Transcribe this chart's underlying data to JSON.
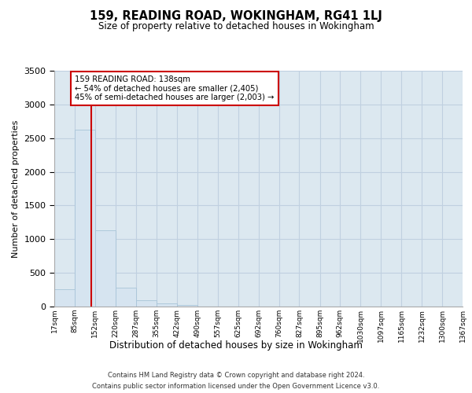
{
  "title": "159, READING ROAD, WOKINGHAM, RG41 1LJ",
  "subtitle": "Size of property relative to detached houses in Wokingham",
  "xlabel": "Distribution of detached houses by size in Wokingham",
  "ylabel": "Number of detached properties",
  "footer_line1": "Contains HM Land Registry data © Crown copyright and database right 2024.",
  "footer_line2": "Contains public sector information licensed under the Open Government Licence v3.0.",
  "annotation_line1": "159 READING ROAD: 138sqm",
  "annotation_line2": "← 54% of detached houses are smaller (2,405)",
  "annotation_line3": "45% of semi-detached houses are larger (2,003) →",
  "property_size_sqm": 138,
  "bar_color": "#d6e4f0",
  "bar_edge_color": "#a8c4d8",
  "redline_color": "#cc0000",
  "annotation_box_color": "#ffffff",
  "annotation_box_edge": "#cc0000",
  "background_color": "#ffffff",
  "grid_color": "#c0d0e0",
  "axes_bg_color": "#dce8f0",
  "bin_edges": [
    17,
    85,
    152,
    220,
    287,
    355,
    422,
    490,
    557,
    625,
    692,
    760,
    827,
    895,
    962,
    1030,
    1097,
    1165,
    1232,
    1300,
    1367
  ],
  "bin_labels": [
    "17sqm",
    "85sqm",
    "152sqm",
    "220sqm",
    "287sqm",
    "355sqm",
    "422sqm",
    "490sqm",
    "557sqm",
    "625sqm",
    "692sqm",
    "760sqm",
    "827sqm",
    "895sqm",
    "962sqm",
    "1030sqm",
    "1097sqm",
    "1165sqm",
    "1232sqm",
    "1300sqm",
    "1367sqm"
  ],
  "counts": [
    260,
    2630,
    1130,
    280,
    95,
    50,
    25,
    0,
    0,
    0,
    0,
    0,
    0,
    0,
    0,
    0,
    0,
    0,
    0,
    0
  ],
  "ylim": [
    0,
    3500
  ],
  "yticks": [
    0,
    500,
    1000,
    1500,
    2000,
    2500,
    3000,
    3500
  ]
}
